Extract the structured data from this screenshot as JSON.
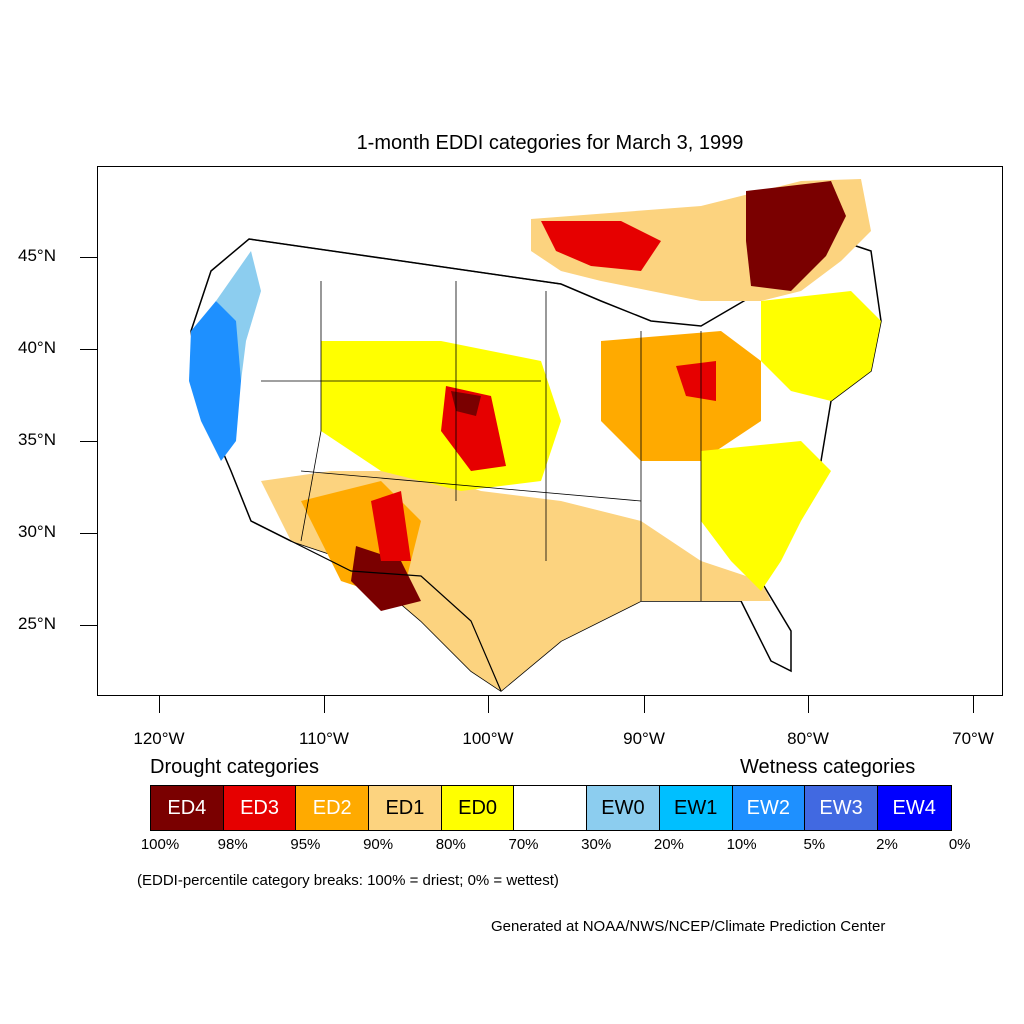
{
  "title": "1-month EDDI categories for March 3, 1999",
  "lat_labels": [
    "45°N",
    "40°N",
    "35°N",
    "30°N",
    "25°N"
  ],
  "lon_labels": [
    "120°W",
    "110°W",
    "100°W",
    "90°W",
    "80°W",
    "70°W"
  ],
  "legend": {
    "drought_heading": "Drought categories",
    "wetness_heading": "Wetness categories",
    "categories": [
      {
        "label": "ED4",
        "color": "#7a0000",
        "text_color": "#ffffff"
      },
      {
        "label": "ED3",
        "color": "#e60000",
        "text_color": "#ffffff"
      },
      {
        "label": "ED2",
        "color": "#ffaa00",
        "text_color": "#ffffff"
      },
      {
        "label": "ED1",
        "color": "#fcd37f",
        "text_color": "#000000"
      },
      {
        "label": "ED0",
        "color": "#ffff00",
        "text_color": "#000000"
      },
      {
        "label": "",
        "color": "#ffffff",
        "text_color": "#000000"
      },
      {
        "label": "EW0",
        "color": "#8ccdef",
        "text_color": "#000000"
      },
      {
        "label": "EW1",
        "color": "#00bfff",
        "text_color": "#000000"
      },
      {
        "label": "EW2",
        "color": "#1e90ff",
        "text_color": "#ffffff"
      },
      {
        "label": "EW3",
        "color": "#4169e1",
        "text_color": "#ffffff"
      },
      {
        "label": "EW4",
        "color": "#0000ff",
        "text_color": "#ffffff"
      }
    ],
    "percent_breaks": [
      "100%",
      "98%",
      "95%",
      "90%",
      "80%",
      "70%",
      "30%",
      "20%",
      "10%",
      "5%",
      "2%",
      "0%"
    ]
  },
  "note": "(EDDI-percentile category breaks: 100% = driest; 0% = wettest)",
  "credit": "Generated at NOAA/NWS/NCEP/Climate Prediction Center"
}
